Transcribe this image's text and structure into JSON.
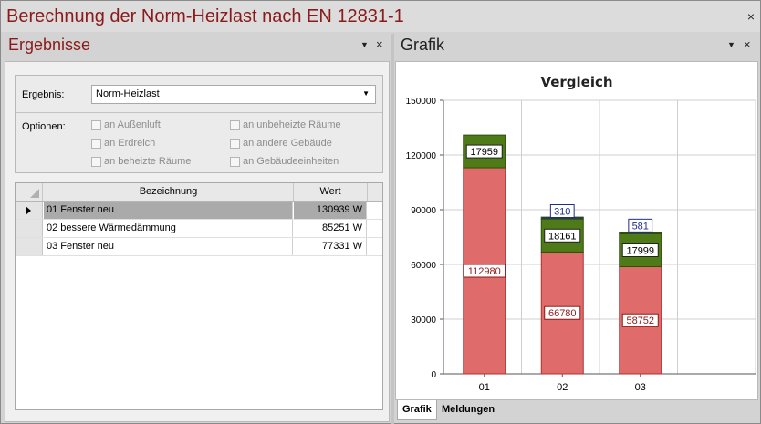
{
  "window": {
    "title": "Berechnung der Norm-Heizlast nach EN 12831-1",
    "close_glyph": "×"
  },
  "left_panel": {
    "title": "Ergebnisse",
    "pin_glyph": "▼",
    "close_glyph": "×",
    "ergebnis_label": "Ergebnis:",
    "ergebnis_value": "Norm-Heizlast",
    "optionen_label": "Optionen:",
    "options": [
      {
        "label": "an Außenluft",
        "checked": false
      },
      {
        "label": "an Erdreich",
        "checked": false
      },
      {
        "label": "an beheizte Räume",
        "checked": false
      },
      {
        "label": "an unbeheizte Räume",
        "checked": false
      },
      {
        "label": "an andere Gebäude",
        "checked": false
      },
      {
        "label": "an Gebäudeeinheiten",
        "checked": false
      }
    ],
    "table": {
      "columns": [
        "Bezeichnung",
        "Wert"
      ],
      "rows": [
        {
          "name": "01 Fenster neu",
          "value": "130939 W",
          "selected": true
        },
        {
          "name": "02 bessere Wärmedämmung",
          "value": "85251 W",
          "selected": false
        },
        {
          "name": "03 Fenster neu",
          "value": "77331 W",
          "selected": false
        }
      ]
    }
  },
  "right_panel": {
    "title": "Grafik",
    "pin_glyph": "▼",
    "close_glyph": "×",
    "tabs": [
      {
        "label": "Grafik",
        "active": true
      },
      {
        "label": "Meldungen",
        "active": false
      }
    ]
  },
  "colors": {
    "title_red": "#8b1a1a",
    "bar_red": "#e06b6b",
    "bar_green": "#4e7a18",
    "bar_blue": "#1f2d8a"
  },
  "chart_data": {
    "type": "bar",
    "stacked": true,
    "title": "Vergleich",
    "categories": [
      "01",
      "02",
      "03"
    ],
    "ylim": [
      0,
      150000
    ],
    "yticks": [
      0,
      30000,
      60000,
      90000,
      120000,
      150000
    ],
    "grid": true,
    "series": [
      {
        "color": "#e06b6b",
        "values": [
          112980,
          66780,
          58752
        ]
      },
      {
        "color": "#4e7a18",
        "values": [
          17959,
          18161,
          17999
        ]
      },
      {
        "color": "#1f2d8a",
        "values": [
          0,
          310,
          581
        ]
      }
    ]
  }
}
